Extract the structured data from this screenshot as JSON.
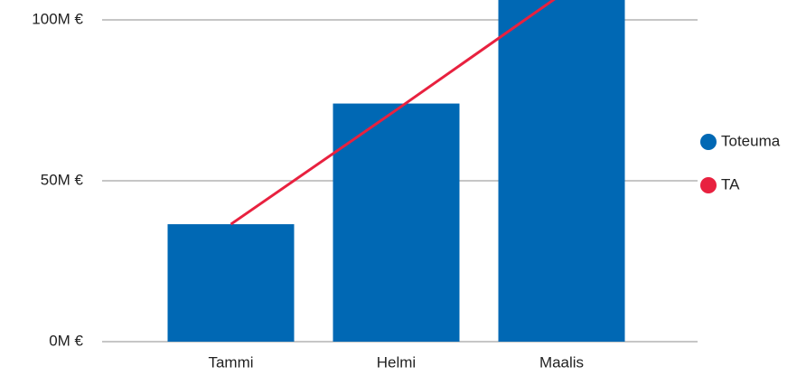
{
  "chart_data": {
    "type": "bar-line",
    "categories": [
      "Tammi",
      "Helmi",
      "Maalis"
    ],
    "series": [
      {
        "name": "Toteuma",
        "type": "bar",
        "color": "#0068b4",
        "values": [
          36.5,
          74,
          110
        ]
      },
      {
        "name": "TA",
        "type": "line",
        "color": "#e8213f",
        "values": [
          36.5,
          72,
          108
        ]
      }
    ],
    "ylim": [
      0,
      106
    ],
    "yticks": [
      {
        "value": 0,
        "label": "0M €"
      },
      {
        "value": 50,
        "label": "50M €"
      },
      {
        "value": 100,
        "label": "100M €"
      }
    ],
    "grid": true,
    "legend": "right"
  }
}
